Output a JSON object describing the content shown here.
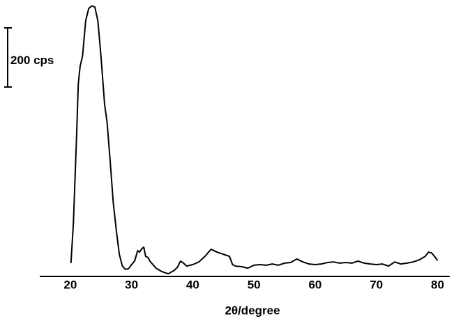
{
  "chart_data": {
    "type": "line",
    "x_label": "2θ/degree",
    "xlim": [
      15,
      82
    ],
    "xticks": [
      20,
      30,
      40,
      50,
      60,
      70,
      80
    ],
    "ylim": [
      0,
      930
    ],
    "scale_bar": {
      "value": 200,
      "label": "200 cps"
    },
    "series": [
      {
        "color": "#000000",
        "x": [
          20.1,
          20.5,
          21,
          21.3,
          21.6,
          22,
          22.5,
          23,
          23.5,
          24,
          24.5,
          25,
          25.6,
          26,
          26.5,
          27,
          27.5,
          28,
          28.5,
          29,
          29.5,
          30,
          30.5,
          31,
          31.3,
          31.7,
          32,
          32.3,
          32.7,
          33,
          33.5,
          34,
          35,
          36,
          37,
          37.5,
          38,
          38.5,
          39,
          40,
          41,
          42,
          43,
          44,
          45,
          46,
          46.5,
          47,
          48,
          49,
          50,
          51,
          52,
          53,
          54,
          55,
          56,
          57,
          58,
          59,
          60,
          61,
          62,
          63,
          64,
          65,
          66,
          67,
          68,
          69,
          70,
          71,
          72,
          73,
          74,
          75,
          76,
          77,
          78,
          78.5,
          79,
          79.5,
          80
        ],
        "values": [
          45,
          181,
          464,
          652,
          711,
          746,
          864,
          906,
          915,
          911,
          864,
          746,
          581,
          522,
          393,
          252,
          158,
          75,
          35,
          24,
          26,
          40,
          52,
          87,
          82,
          94,
          99,
          68,
          64,
          52,
          40,
          28,
          16,
          9,
          21,
          31,
          52,
          45,
          35,
          40,
          49,
          68,
          92,
          82,
          75,
          68,
          40,
          35,
          33,
          28,
          38,
          40,
          38,
          42,
          38,
          45,
          47,
          59,
          49,
          42,
          40,
          42,
          47,
          49,
          45,
          47,
          45,
          52,
          45,
          42,
          40,
          42,
          35,
          49,
          42,
          45,
          49,
          56,
          68,
          82,
          80,
          68,
          54
        ]
      }
    ]
  }
}
